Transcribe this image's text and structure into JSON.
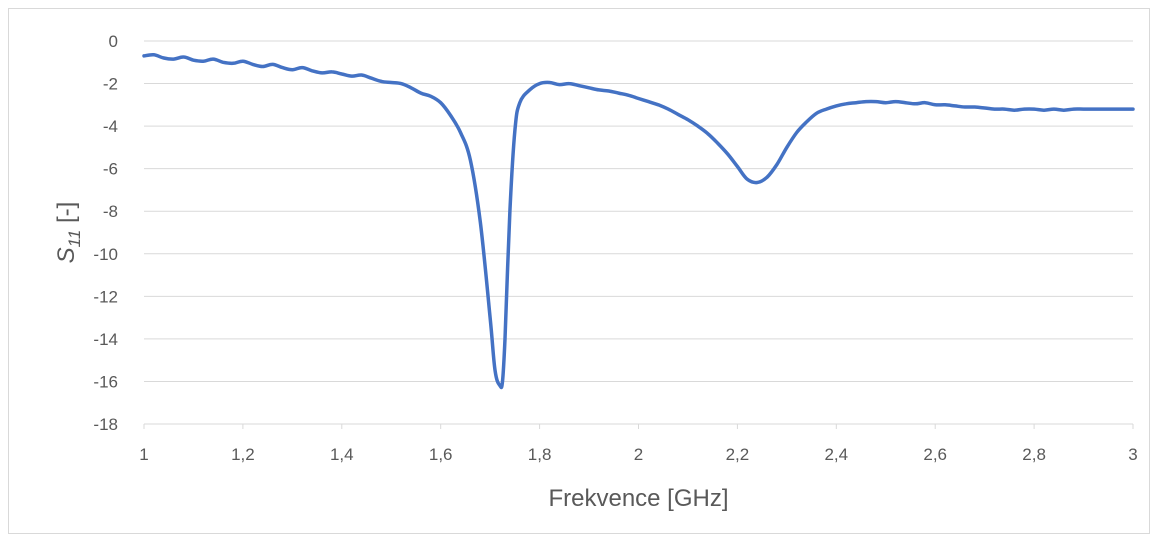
{
  "chart_data": {
    "type": "line",
    "xlabel": "Frekvence [GHz]",
    "ylabel_main": "S",
    "ylabel_sub": "11",
    "ylabel_unit": " [-]",
    "xlim": [
      1,
      3
    ],
    "ylim": [
      -18,
      0
    ],
    "x_ticks": [
      1,
      1.2,
      1.4,
      1.6,
      1.8,
      2,
      2.2,
      2.4,
      2.6,
      2.8,
      3
    ],
    "x_tick_labels": [
      "1",
      "1,2",
      "1,4",
      "1,6",
      "1,8",
      "2",
      "2,2",
      "2,4",
      "2,6",
      "2,8",
      "3"
    ],
    "y_ticks": [
      0,
      -2,
      -4,
      -6,
      -8,
      -10,
      -12,
      -14,
      -16,
      -18
    ],
    "y_tick_labels": [
      "0",
      "-2",
      "-4",
      "-6",
      "-8",
      "-10",
      "-12",
      "-14",
      "-16",
      "-18"
    ],
    "grid": true,
    "legend": "none",
    "series": [
      {
        "color": "#4472c4",
        "x": [
          1.0,
          1.02,
          1.04,
          1.06,
          1.08,
          1.1,
          1.12,
          1.14,
          1.16,
          1.18,
          1.2,
          1.22,
          1.24,
          1.26,
          1.28,
          1.3,
          1.32,
          1.34,
          1.36,
          1.38,
          1.4,
          1.42,
          1.44,
          1.46,
          1.48,
          1.5,
          1.52,
          1.54,
          1.56,
          1.58,
          1.6,
          1.62,
          1.64,
          1.66,
          1.68,
          1.7,
          1.71,
          1.72,
          1.725,
          1.73,
          1.74,
          1.75,
          1.76,
          1.78,
          1.8,
          1.82,
          1.84,
          1.86,
          1.88,
          1.9,
          1.92,
          1.94,
          1.96,
          1.98,
          2.0,
          2.02,
          2.04,
          2.06,
          2.08,
          2.1,
          2.12,
          2.14,
          2.16,
          2.18,
          2.2,
          2.22,
          2.24,
          2.26,
          2.28,
          2.3,
          2.32,
          2.34,
          2.36,
          2.38,
          2.4,
          2.42,
          2.44,
          2.46,
          2.48,
          2.5,
          2.52,
          2.54,
          2.56,
          2.58,
          2.6,
          2.62,
          2.64,
          2.66,
          2.68,
          2.7,
          2.72,
          2.74,
          2.76,
          2.78,
          2.8,
          2.82,
          2.84,
          2.86,
          2.88,
          2.9,
          2.92,
          2.94,
          2.96,
          2.98,
          3.0
        ],
        "values": [
          -0.7,
          -0.65,
          -0.8,
          -0.85,
          -0.75,
          -0.9,
          -0.95,
          -0.85,
          -1.0,
          -1.05,
          -0.95,
          -1.1,
          -1.2,
          -1.1,
          -1.25,
          -1.35,
          -1.25,
          -1.4,
          -1.5,
          -1.45,
          -1.55,
          -1.65,
          -1.6,
          -1.75,
          -1.9,
          -1.95,
          -2.0,
          -2.2,
          -2.45,
          -2.6,
          -2.9,
          -3.5,
          -4.3,
          -5.6,
          -8.5,
          -13.0,
          -15.5,
          -16.2,
          -16.0,
          -14.0,
          -8.0,
          -4.2,
          -2.9,
          -2.3,
          -2.0,
          -1.95,
          -2.05,
          -2.0,
          -2.1,
          -2.2,
          -2.3,
          -2.35,
          -2.45,
          -2.55,
          -2.7,
          -2.85,
          -3.0,
          -3.2,
          -3.45,
          -3.7,
          -4.0,
          -4.35,
          -4.8,
          -5.3,
          -5.9,
          -6.5,
          -6.65,
          -6.4,
          -5.8,
          -5.0,
          -4.3,
          -3.8,
          -3.4,
          -3.2,
          -3.05,
          -2.95,
          -2.9,
          -2.85,
          -2.85,
          -2.9,
          -2.85,
          -2.9,
          -2.95,
          -2.9,
          -3.0,
          -3.0,
          -3.05,
          -3.1,
          -3.1,
          -3.15,
          -3.2,
          -3.2,
          -3.25,
          -3.2,
          -3.2,
          -3.25,
          -3.2,
          -3.25,
          -3.2,
          -3.2,
          -3.2,
          -3.2,
          -3.2,
          -3.2,
          -3.2
        ]
      }
    ]
  }
}
